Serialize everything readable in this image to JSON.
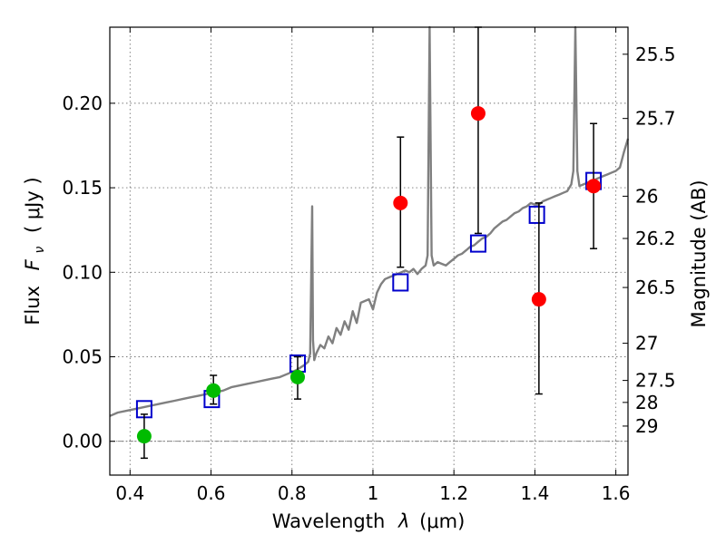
{
  "chart_data": {
    "type": "scatter",
    "xlabel_prefix": "Wavelength",
    "xlabel_symbol": "λ",
    "xlabel_unit": "(μm)",
    "ylabel_prefix": "Flux",
    "ylabel_symbol": "F",
    "ylabel_subscript": "ν",
    "ylabel_unit": "( μJy )",
    "y2label": "Magnitude (AB)",
    "xlim": [
      0.35,
      1.63
    ],
    "ylim": [
      -0.02,
      0.245
    ],
    "grid": true,
    "x_ticks": [
      0.4,
      0.6,
      0.8,
      1.0,
      1.2,
      1.4,
      1.6
    ],
    "x_tick_labels": [
      "0.4",
      "0.6",
      "0.8",
      "1",
      "1.2",
      "1.4",
      "1.6"
    ],
    "y_ticks": [
      0.0,
      0.05,
      0.1,
      0.15,
      0.2
    ],
    "y_tick_labels": [
      "0.00",
      "0.05",
      "0.10",
      "0.15",
      "0.20"
    ],
    "y2_ticks": [
      {
        "label": "25.5",
        "flux": 0.229
      },
      {
        "label": "25.7",
        "flux": 0.191
      },
      {
        "label": "26",
        "flux": 0.145
      },
      {
        "label": "26.2",
        "flux": 0.12
      },
      {
        "label": "26.5",
        "flux": 0.091
      },
      {
        "label": "27",
        "flux": 0.058
      },
      {
        "label": "27.5",
        "flux": 0.036
      },
      {
        "label": "28",
        "flux": 0.023
      },
      {
        "label": "29",
        "flux": 0.009
      }
    ],
    "zero_line": 0.0,
    "colors": {
      "spectrum": "#808080",
      "model_box": "#0000cc",
      "detection": "#00bb00",
      "nondetection": "#ff0000",
      "errorbar": "#000000"
    },
    "spectrum": {
      "points": [
        [
          0.35,
          0.015
        ],
        [
          0.37,
          0.017
        ],
        [
          0.39,
          0.018
        ],
        [
          0.41,
          0.019
        ],
        [
          0.43,
          0.02
        ],
        [
          0.45,
          0.021
        ],
        [
          0.47,
          0.022
        ],
        [
          0.49,
          0.023
        ],
        [
          0.51,
          0.024
        ],
        [
          0.53,
          0.025
        ],
        [
          0.55,
          0.026
        ],
        [
          0.57,
          0.027
        ],
        [
          0.59,
          0.028
        ],
        [
          0.61,
          0.029
        ],
        [
          0.63,
          0.03
        ],
        [
          0.65,
          0.032
        ],
        [
          0.67,
          0.033
        ],
        [
          0.69,
          0.034
        ],
        [
          0.71,
          0.035
        ],
        [
          0.73,
          0.036
        ],
        [
          0.75,
          0.037
        ],
        [
          0.77,
          0.038
        ],
        [
          0.79,
          0.04
        ],
        [
          0.81,
          0.042
        ],
        [
          0.83,
          0.045
        ],
        [
          0.84,
          0.047
        ],
        [
          0.845,
          0.052
        ],
        [
          0.85,
          0.139
        ],
        [
          0.852,
          0.06
        ],
        [
          0.855,
          0.048
        ],
        [
          0.86,
          0.052
        ],
        [
          0.87,
          0.057
        ],
        [
          0.88,
          0.055
        ],
        [
          0.89,
          0.062
        ],
        [
          0.9,
          0.058
        ],
        [
          0.91,
          0.067
        ],
        [
          0.92,
          0.063
        ],
        [
          0.93,
          0.071
        ],
        [
          0.94,
          0.066
        ],
        [
          0.95,
          0.077
        ],
        [
          0.96,
          0.07
        ],
        [
          0.97,
          0.082
        ],
        [
          0.98,
          0.083
        ],
        [
          0.99,
          0.084
        ],
        [
          1.0,
          0.078
        ],
        [
          1.01,
          0.088
        ],
        [
          1.02,
          0.093
        ],
        [
          1.03,
          0.096
        ],
        [
          1.04,
          0.097
        ],
        [
          1.05,
          0.098
        ],
        [
          1.06,
          0.099
        ],
        [
          1.07,
          0.1
        ],
        [
          1.08,
          0.101
        ],
        [
          1.09,
          0.1
        ],
        [
          1.1,
          0.102
        ],
        [
          1.11,
          0.099
        ],
        [
          1.12,
          0.102
        ],
        [
          1.13,
          0.104
        ],
        [
          1.135,
          0.11
        ],
        [
          1.14,
          0.245
        ],
        [
          1.145,
          0.11
        ],
        [
          1.15,
          0.104
        ],
        [
          1.16,
          0.106
        ],
        [
          1.17,
          0.105
        ],
        [
          1.18,
          0.104
        ],
        [
          1.19,
          0.106
        ],
        [
          1.2,
          0.108
        ],
        [
          1.21,
          0.11
        ],
        [
          1.22,
          0.111
        ],
        [
          1.23,
          0.113
        ],
        [
          1.24,
          0.115
        ],
        [
          1.25,
          0.116
        ],
        [
          1.26,
          0.118
        ],
        [
          1.27,
          0.12
        ],
        [
          1.28,
          0.121
        ],
        [
          1.29,
          0.123
        ],
        [
          1.3,
          0.126
        ],
        [
          1.31,
          0.128
        ],
        [
          1.32,
          0.13
        ],
        [
          1.33,
          0.131
        ],
        [
          1.34,
          0.133
        ],
        [
          1.35,
          0.135
        ],
        [
          1.36,
          0.136
        ],
        [
          1.37,
          0.138
        ],
        [
          1.38,
          0.139
        ],
        [
          1.39,
          0.141
        ],
        [
          1.4,
          0.14
        ],
        [
          1.41,
          0.14
        ],
        [
          1.42,
          0.142
        ],
        [
          1.43,
          0.143
        ],
        [
          1.44,
          0.144
        ],
        [
          1.45,
          0.145
        ],
        [
          1.46,
          0.146
        ],
        [
          1.47,
          0.147
        ],
        [
          1.48,
          0.148
        ],
        [
          1.49,
          0.152
        ],
        [
          1.495,
          0.16
        ],
        [
          1.5,
          0.245
        ],
        [
          1.505,
          0.16
        ],
        [
          1.51,
          0.151
        ],
        [
          1.52,
          0.152
        ],
        [
          1.53,
          0.153
        ],
        [
          1.54,
          0.154
        ],
        [
          1.55,
          0.155
        ],
        [
          1.56,
          0.156
        ],
        [
          1.57,
          0.157
        ],
        [
          1.58,
          0.158
        ],
        [
          1.59,
          0.159
        ],
        [
          1.6,
          0.16
        ],
        [
          1.61,
          0.162
        ],
        [
          1.62,
          0.171
        ],
        [
          1.63,
          0.179
        ]
      ]
    },
    "model_boxes": [
      {
        "x": 0.435,
        "y": 0.019
      },
      {
        "x": 0.602,
        "y": 0.025
      },
      {
        "x": 0.814,
        "y": 0.046
      },
      {
        "x": 1.068,
        "y": 0.094
      },
      {
        "x": 1.26,
        "y": 0.117
      },
      {
        "x": 1.405,
        "y": 0.134
      },
      {
        "x": 1.545,
        "y": 0.154
      }
    ],
    "observations": [
      {
        "x": 0.435,
        "y": 0.003,
        "err_low": -0.01,
        "err_high": 0.016,
        "kind": "detection"
      },
      {
        "x": 0.606,
        "y": 0.03,
        "err_low": 0.022,
        "err_high": 0.039,
        "kind": "detection"
      },
      {
        "x": 0.814,
        "y": 0.038,
        "err_low": 0.025,
        "err_high": 0.05,
        "kind": "detection"
      },
      {
        "x": 1.068,
        "y": 0.141,
        "err_low": 0.103,
        "err_high": 0.18,
        "kind": "nondetection"
      },
      {
        "x": 1.26,
        "y": 0.194,
        "err_low": 0.123,
        "err_high": 0.245,
        "kind": "nondetection"
      },
      {
        "x": 1.41,
        "y": 0.084,
        "err_low": 0.028,
        "err_high": 0.141,
        "kind": "nondetection"
      },
      {
        "x": 1.545,
        "y": 0.151,
        "err_low": 0.114,
        "err_high": 0.188,
        "kind": "nondetection"
      }
    ]
  }
}
